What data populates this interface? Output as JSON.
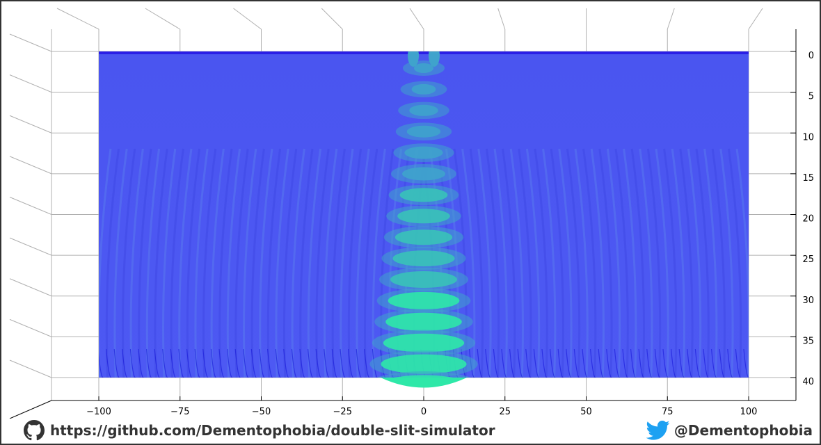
{
  "chart_data": {
    "type": "surface-3d",
    "description_series": "double-slit interference intensity surface",
    "x_ticks": [
      -100,
      -75,
      -50,
      -25,
      0,
      25,
      50,
      75,
      100
    ],
    "x_tick_labels": [
      "−100",
      "−75",
      "−50",
      "−25",
      "0",
      "25",
      "50",
      "75",
      "100"
    ],
    "xlim": [
      -100,
      100
    ],
    "y_ticks": [
      0,
      5,
      10,
      15,
      20,
      25,
      30,
      35,
      40
    ],
    "y_tick_labels": [
      "0",
      "5",
      "10",
      "15",
      "20",
      "25",
      "30",
      "35",
      "40"
    ],
    "ylim": [
      0,
      40
    ],
    "grid": true,
    "colormap": [
      "#2a2aee",
      "#4b57f2",
      "#3fa3cc",
      "#2ee8a8"
    ],
    "view": "front"
  },
  "footer": {
    "github_url": "https://github.com/Dementophobia/double-slit-simulator",
    "twitter_handle": "@Dementophobia"
  },
  "colors": {
    "frame": "#333333",
    "text": "#333333",
    "grid": "#b0b0b0",
    "twitter": "#1da1f2"
  }
}
